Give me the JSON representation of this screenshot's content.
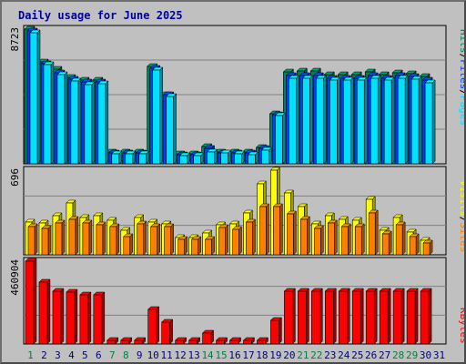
{
  "title": "Daily usage for June 2025",
  "labels": {
    "pages": "Pages",
    "files": "Files",
    "hits": "Hits",
    "sites": "Sites",
    "visits": "Visits",
    "kbytes": "KBytes",
    "sep": "/"
  },
  "colors": {
    "hits": "#00805c",
    "files": "#0040ff",
    "pages": "#00e0ff",
    "visits": "#ffff00",
    "sites": "#ff8000",
    "kbytes": "#ff0000",
    "weekend_day": "#008040",
    "weekday": "#000080",
    "title": "#0000a0"
  },
  "chart_data": [
    {
      "type": "bar",
      "name": "hits-files-pages",
      "x": [
        "1",
        "2",
        "3",
        "4",
        "5",
        "6",
        "7",
        "8",
        "9",
        "10",
        "11",
        "12",
        "13",
        "14",
        "15",
        "16",
        "17",
        "18",
        "19",
        "20",
        "21",
        "22",
        "23",
        "24",
        "25",
        "26",
        "27",
        "28",
        "29",
        "30",
        "31"
      ],
      "weekend_days": [
        "1",
        "7",
        "8",
        "14",
        "15",
        "21",
        "22",
        "28",
        "29"
      ],
      "ymax_label": "8723",
      "ylim": [
        0,
        8723
      ],
      "series": [
        {
          "name": "Hits",
          "values": [
            8723,
            6600,
            6150,
            5600,
            5450,
            5450,
            780,
            780,
            780,
            6300,
            4500,
            670,
            670,
            1100,
            780,
            780,
            780,
            1050,
            3250,
            5950,
            6000,
            6000,
            5800,
            5800,
            5750,
            5950,
            5750,
            5900,
            5850,
            5650,
            0
          ]
        },
        {
          "name": "Files",
          "values": [
            8600,
            6500,
            5900,
            5500,
            5300,
            5300,
            730,
            730,
            730,
            6200,
            4450,
            600,
            600,
            980,
            730,
            730,
            690,
            980,
            3200,
            5700,
            5700,
            5700,
            5550,
            5550,
            5550,
            5700,
            5550,
            5700,
            5650,
            5450,
            0
          ]
        },
        {
          "name": "Pages",
          "values": [
            8500,
            6400,
            5750,
            5350,
            5150,
            5200,
            620,
            620,
            620,
            6100,
            4350,
            540,
            540,
            760,
            700,
            660,
            580,
            880,
            3100,
            5550,
            5550,
            5550,
            5400,
            5400,
            5400,
            5550,
            5400,
            5550,
            5500,
            5250,
            0
          ]
        }
      ]
    },
    {
      "type": "bar",
      "name": "visits-sites",
      "x": [
        "1",
        "2",
        "3",
        "4",
        "5",
        "6",
        "7",
        "8",
        "9",
        "10",
        "11",
        "12",
        "13",
        "14",
        "15",
        "16",
        "17",
        "18",
        "19",
        "20",
        "21",
        "22",
        "23",
        "24",
        "25",
        "26",
        "27",
        "28",
        "29",
        "30",
        "31"
      ],
      "ymax_label": "696",
      "ylim": [
        0,
        696
      ],
      "series": [
        {
          "name": "Visits",
          "values": [
            270,
            260,
            325,
            430,
            305,
            320,
            285,
            200,
            310,
            270,
            255,
            140,
            140,
            180,
            245,
            255,
            345,
            585,
            696,
            510,
            400,
            255,
            325,
            290,
            285,
            455,
            200,
            305,
            185,
            120,
            0
          ]
        },
        {
          "name": "Sites",
          "values": [
            230,
            220,
            265,
            290,
            265,
            250,
            235,
            150,
            255,
            230,
            230,
            125,
            125,
            130,
            225,
            210,
            270,
            395,
            395,
            340,
            290,
            215,
            265,
            235,
            230,
            345,
            170,
            245,
            150,
            100,
            0
          ]
        }
      ]
    },
    {
      "type": "bar",
      "name": "kbytes",
      "x": [
        "1",
        "2",
        "3",
        "4",
        "5",
        "6",
        "7",
        "8",
        "9",
        "10",
        "11",
        "12",
        "13",
        "14",
        "15",
        "16",
        "17",
        "18",
        "19",
        "20",
        "21",
        "22",
        "23",
        "24",
        "25",
        "26",
        "27",
        "28",
        "29",
        "30",
        "31"
      ],
      "ymax_label": "460904",
      "ylim": [
        0,
        460904
      ],
      "series": [
        {
          "name": "KBytes",
          "values": [
            460904,
            345000,
            295000,
            290000,
            275000,
            275000,
            20000,
            20000,
            20000,
            190000,
            120000,
            20000,
            20000,
            60000,
            20000,
            20000,
            20000,
            20000,
            130000,
            295000,
            295000,
            295000,
            295000,
            295000,
            295000,
            295000,
            295000,
            295000,
            295000,
            295000,
            0
          ]
        }
      ]
    }
  ]
}
